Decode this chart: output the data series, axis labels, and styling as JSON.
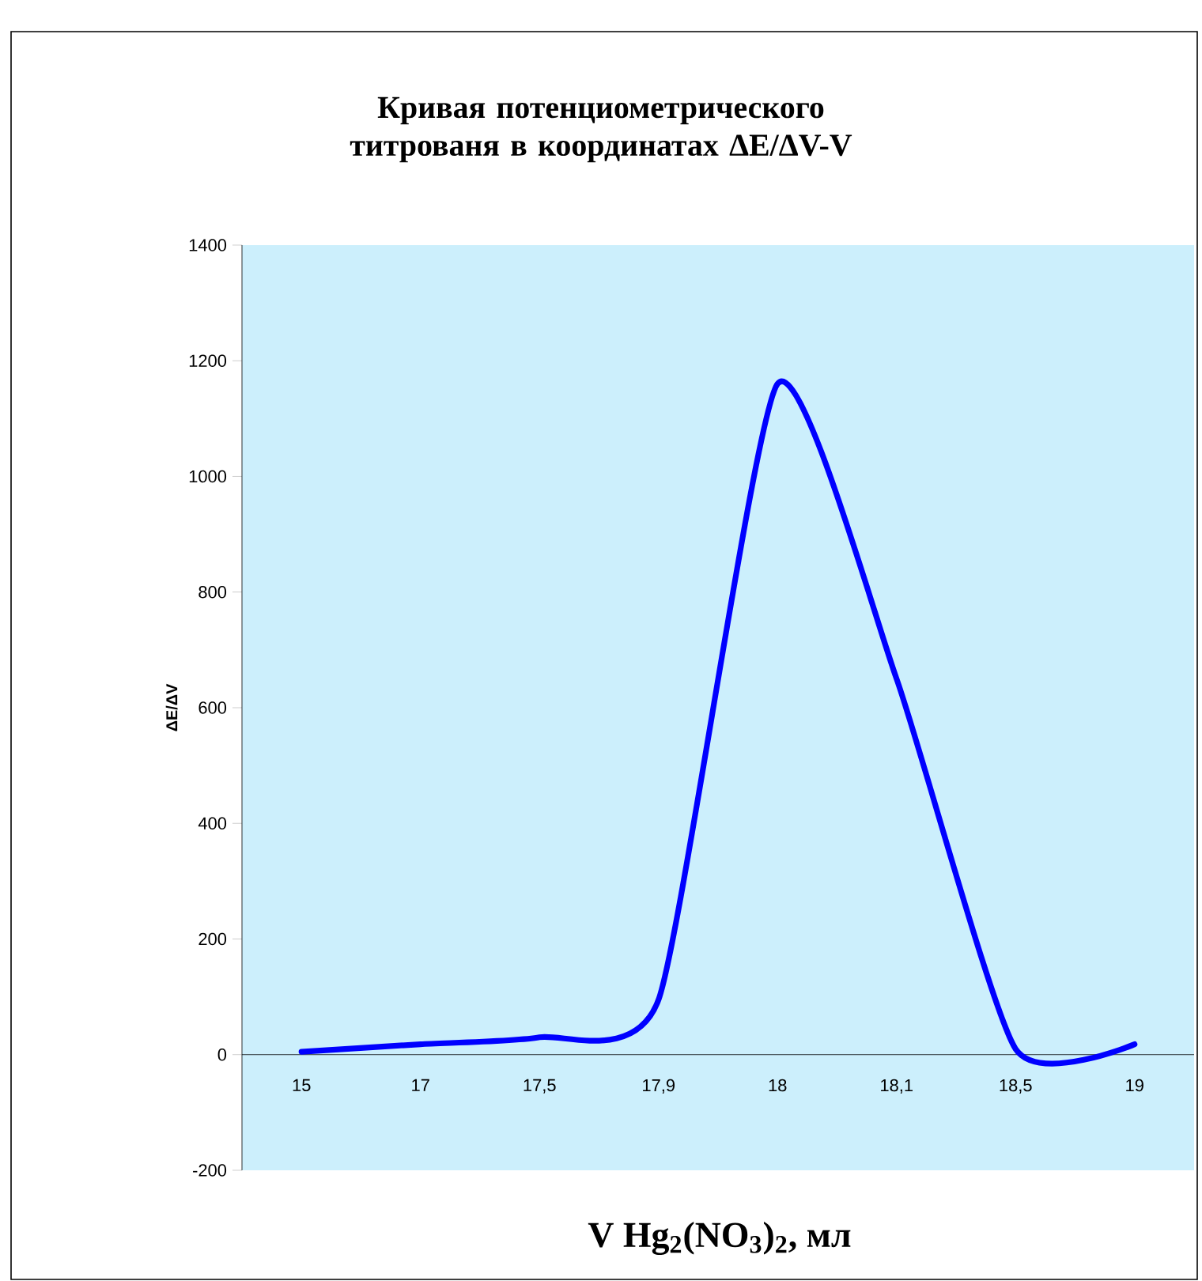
{
  "chart_data": {
    "type": "line",
    "title": "Кривая потенциометрического титрованя в координатах ΔE/ΔV-V",
    "xlabel": "V Hg$_{2}$(NO$_{3}$)$_{2}$, мл",
    "ylabel": "ΔE/ΔV",
    "categories": [
      "15",
      "17",
      "17,5",
      "17,9",
      "18",
      "18,1",
      "18,5",
      "19"
    ],
    "series": [
      {
        "color": "#0000ff",
        "values": [
          5,
          18,
          30,
          95,
          1160,
          650,
          10,
          18
        ]
      }
    ],
    "ylim": [
      -200,
      1400
    ],
    "yticks": [
      -200,
      0,
      200,
      400,
      600,
      800,
      1000,
      1200,
      1400
    ],
    "grid": false,
    "line_style": "solid"
  }
}
